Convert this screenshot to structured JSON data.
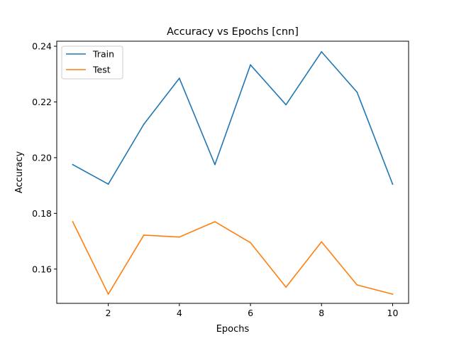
{
  "chart_data": {
    "type": "line",
    "title": "Accuracy vs Epochs [cnn]",
    "xlabel": "Epochs",
    "ylabel": "Accuracy",
    "xlim": [
      0.55,
      10.45
    ],
    "ylim": [
      0.1477,
      0.2418
    ],
    "x_ticks": [
      2,
      4,
      6,
      8,
      10
    ],
    "x_tick_labels": [
      "2",
      "4",
      "6",
      "8",
      "10"
    ],
    "y_ticks": [
      0.16,
      0.18,
      0.2,
      0.22,
      0.24
    ],
    "y_tick_labels": [
      "0.16",
      "0.18",
      "0.20",
      "0.22",
      "0.24"
    ],
    "grid": false,
    "legend_position": "top-left",
    "x": [
      1,
      2,
      3,
      4,
      5,
      6,
      7,
      8,
      9,
      10
    ],
    "series": [
      {
        "name": "Train",
        "color": "#1f77b4",
        "values": [
          0.1975,
          0.1905,
          0.212,
          0.2285,
          0.1975,
          0.2333,
          0.219,
          0.238,
          0.2235,
          0.1905
        ]
      },
      {
        "name": "Test",
        "color": "#ff7f0e",
        "values": [
          0.177,
          0.151,
          0.1722,
          0.1715,
          0.177,
          0.1695,
          0.1535,
          0.1698,
          0.1543,
          0.151
        ]
      }
    ]
  }
}
